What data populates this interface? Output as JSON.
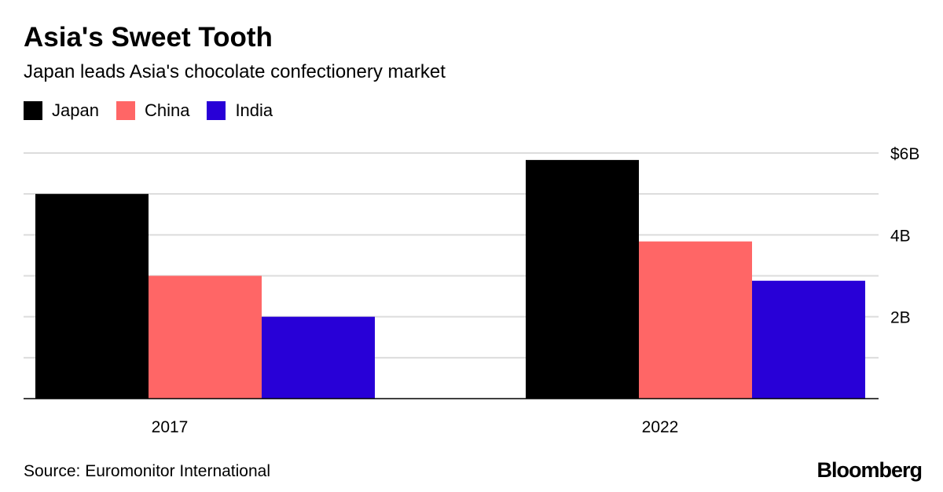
{
  "title": "Asia's Sweet Tooth",
  "subtitle": "Japan leads Asia's chocolate confectionery market",
  "source": "Source: Euromonitor International",
  "logo": "Bloomberg",
  "chart_data": {
    "type": "bar",
    "title": "Asia's Sweet Tooth",
    "subtitle": "Japan leads Asia's chocolate confectionery market",
    "xlabel": "",
    "ylabel": "",
    "categories": [
      "2017",
      "2022"
    ],
    "series": [
      {
        "name": "Japan",
        "color": "#000000",
        "values": [
          5.0,
          5.83
        ]
      },
      {
        "name": "China",
        "color": "#ff6666",
        "values": [
          3.0,
          3.84
        ]
      },
      {
        "name": "India",
        "color": "#2800d7",
        "values": [
          2.0,
          2.88
        ]
      }
    ],
    "ylim": [
      0,
      6
    ],
    "yticks": [
      {
        "value": 6,
        "label": "$6B"
      },
      {
        "value": 4,
        "label": "4B"
      },
      {
        "value": 2,
        "label": "2B"
      }
    ],
    "grid": true,
    "legend": "top-left"
  }
}
